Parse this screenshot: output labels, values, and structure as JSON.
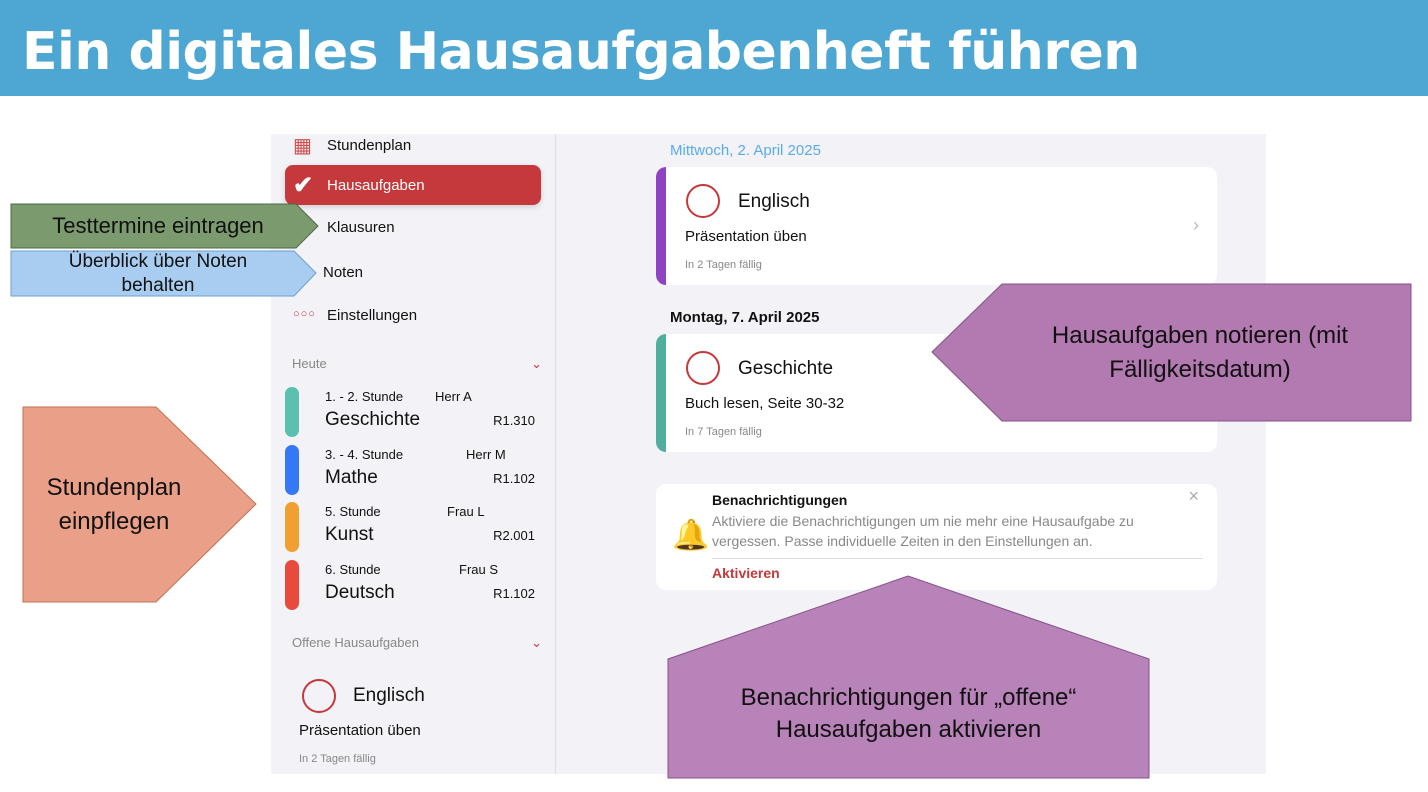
{
  "slide": {
    "title": "Ein digitales Hausaufgabenheft führen",
    "header_color": "#4ea6d2"
  },
  "sidebar": {
    "nav": [
      {
        "label": "Stundenplan",
        "icon": "calendar-icon"
      },
      {
        "label": "Hausaufgaben",
        "icon": "checkmark-icon",
        "active": true
      },
      {
        "label": "Klausuren",
        "icon": "exam-icon"
      },
      {
        "label": "Noten",
        "icon": "grades-icon"
      },
      {
        "label": "Einstellungen",
        "icon": "more-dots-icon"
      }
    ],
    "today_label": "Heute",
    "lessons": [
      {
        "period": "1. - 2. Stunde",
        "teacher": "Herr A",
        "subject": "Geschichte",
        "room": "R1.310",
        "color": "#5bc0b0"
      },
      {
        "period": "3. - 4. Stunde",
        "teacher": "Herr M",
        "subject": "Mathe",
        "room": "R1.102",
        "color": "#3478f6"
      },
      {
        "period": "5. Stunde",
        "teacher": "Frau L",
        "subject": "Kunst",
        "room": "R2.001",
        "color": "#f0a030"
      },
      {
        "period": "6. Stunde",
        "teacher": "Frau S",
        "subject": "Deutsch",
        "room": "R1.102",
        "color": "#e84b3c"
      }
    ],
    "open_label": "Offene Hausaufgaben",
    "open_item": {
      "subject": "Englisch",
      "task": "Präsentation üben",
      "due": "In 2 Tagen fällig"
    }
  },
  "main": {
    "groups": [
      {
        "date": "Mittwoch, 2. April 2025",
        "subject": "Englisch",
        "task": "Präsentation üben",
        "due": "In 2 Tagen fällig",
        "color": "#8e44c0"
      },
      {
        "date": "Montag, 7. April 2025",
        "subject": "Geschichte",
        "task": "Buch lesen, Seite 30-32",
        "due": "In 7 Tagen fällig",
        "color": "#4fae9e"
      }
    ],
    "notification": {
      "title": "Benachrichtigungen",
      "body": "Aktiviere die Benachrichtigungen um nie mehr eine Hausaufgabe zu vergessen. Passe individuelle Zeiten in den Einstellungen an.",
      "action": "Aktivieren",
      "close": "×"
    }
  },
  "callouts": {
    "tests": "Testtermine eintragen",
    "grades": "Überblick über Noten behalten",
    "timetable": "Stundenplan einpflegen",
    "homework": "Hausaufgaben notieren (mit Fälligkeitsdatum)",
    "notifications": "Benachrichtigungen für „offene“ Hausaufgaben aktivieren"
  },
  "accent": "#c5383b"
}
